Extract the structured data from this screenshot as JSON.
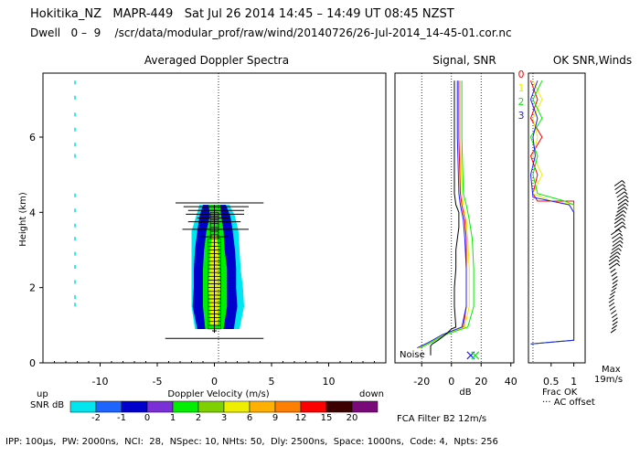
{
  "header": {
    "line1": "Hokitika_NZ   MAPR-449   Sat Jul 26 2014 14:45 – 14:49 UT 08:45 NZST",
    "line2": "Dwell   0 –  9    /scr/data/modular_prof/raw/wind/20140726/26-Jul-2014_14-45-01.cor.nc"
  },
  "footer": {
    "params": "IPP: 100μs,  PW: 2000ns,  NCI:  28,  NSpec: 10, NHts: 50,  Dly: 2500ns,  Space: 1000ns,  Code: 4,  Npts: 256"
  },
  "colors": {
    "snr_scale": [
      "#00e5ee",
      "#1e64ff",
      "#0000cd",
      "#7b2fd6",
      "#00ee00",
      "#7fd000",
      "#eeee00",
      "#ffb000",
      "#ff7f00",
      "#ff0000",
      "#3c0000",
      "#7a0a7a"
    ],
    "series": [
      "#ff0000",
      "#eeee00",
      "#00ee00",
      "#2020ff"
    ],
    "doppler_bg": "#00e5ee"
  },
  "chart_data": [
    {
      "panel": "doppler",
      "type": "heatmap",
      "title": "Averaged Doppler Spectra",
      "xlabel": "Doppler Velocity (m/s)",
      "ylabel": "Height (km)",
      "x_ticks": [
        -10,
        -5,
        0,
        5,
        10
      ],
      "y_ticks": [
        0,
        2,
        4,
        6
      ],
      "xlim": [
        -15,
        15
      ],
      "ylim": [
        0,
        7.7
      ],
      "label_up": "up",
      "label_down": "down",
      "snr_label": "SNR dB",
      "snr_levels": [
        "-2",
        "-1",
        "0",
        "1",
        "2",
        "3",
        "6",
        "9",
        "12",
        "15",
        "20"
      ],
      "envelope": [
        [
          0.9,
          -0.8,
          0.8,
          -1.5,
          1.7,
          -1.7,
          2.2
        ],
        [
          1.5,
          -1.0,
          1.1,
          -1.9,
          2.0,
          -2.0,
          2.6
        ],
        [
          2.0,
          -1.0,
          1.1,
          -1.8,
          1.9,
          -2.0,
          2.5
        ],
        [
          2.5,
          -1.0,
          1.1,
          -1.8,
          1.9,
          -2.0,
          2.3
        ],
        [
          3.0,
          -0.9,
          0.9,
          -1.7,
          1.8,
          -2.0,
          2.2
        ],
        [
          3.5,
          -0.7,
          0.8,
          -1.5,
          1.6,
          -2.0,
          2.1
        ],
        [
          3.9,
          -0.4,
          0.6,
          -1.3,
          1.4,
          -1.6,
          1.8
        ],
        [
          4.2,
          -0.5,
          0.5,
          -1.0,
          1.0,
          -1.3,
          1.3
        ]
      ],
      "error_bars": [
        [
          0.65,
          -4.3,
          4.3
        ],
        [
          0.85,
          -0.2,
          0.2
        ],
        [
          3.85,
          -1.5,
          1.3
        ],
        [
          3.75,
          -2.3,
          2.3
        ],
        [
          3.95,
          -2.5,
          2.6
        ],
        [
          4.05,
          -2.3,
          2.6
        ],
        [
          4.15,
          -2.7,
          3.0
        ],
        [
          4.25,
          -3.4,
          4.3
        ],
        [
          3.55,
          -2.8,
          3.0
        ],
        [
          3.35,
          -1.2,
          1.2
        ]
      ],
      "dashed_marks": [
        [
          -12.2,
          7.45
        ],
        [
          -12.2,
          7.05
        ],
        [
          -12.2,
          6.6
        ],
        [
          -12.2,
          6.2
        ],
        [
          -12.2,
          5.8
        ],
        [
          -12.2,
          5.5
        ],
        [
          -12.2,
          4.45
        ],
        [
          -12.2,
          4.05
        ],
        [
          -12.2,
          3.65
        ],
        [
          -12.2,
          3.3
        ],
        [
          -12.2,
          2.9
        ],
        [
          -12.2,
          2.55
        ],
        [
          -12.2,
          2.15
        ],
        [
          -12.2,
          1.75
        ],
        [
          -12.2,
          1.55
        ]
      ]
    },
    {
      "panel": "signal",
      "type": "line",
      "title": "Signal, SNR",
      "xlabel": "dB",
      "x_ticks": [
        -20,
        0,
        20,
        40
      ],
      "xlim": [
        -38,
        42
      ],
      "ylim": [
        0,
        7.7
      ],
      "noise_label": "Noise",
      "signal": [
        [
          -13,
          0.5
        ],
        [
          -9,
          0.6
        ],
        [
          -4,
          0.75
        ],
        [
          0,
          0.9
        ],
        [
          3,
          0.95
        ],
        [
          2,
          1.5
        ],
        [
          2,
          2.0
        ],
        [
          3,
          2.5
        ],
        [
          3,
          3.0
        ],
        [
          5,
          3.6
        ],
        [
          5,
          4.0
        ],
        [
          3,
          4.2
        ],
        [
          2,
          4.5
        ],
        [
          2,
          6.0
        ],
        [
          2,
          7.5
        ]
      ],
      "noise_floor": [
        [
          -14,
          0.2
        ],
        [
          -14,
          0.45
        ],
        [
          -13,
          0.5
        ]
      ],
      "series": [
        {
          "points": [
            [
              -22,
              0.4
            ],
            [
              -14,
              0.55
            ],
            [
              -5,
              0.75
            ],
            [
              8,
              0.95
            ],
            [
              10,
              1.5
            ],
            [
              10,
              2.5
            ],
            [
              10,
              3.3
            ],
            [
              9,
              3.8
            ],
            [
              7,
              4.2
            ],
            [
              6,
              4.5
            ],
            [
              5,
              6.0
            ],
            [
              5,
              7.5
            ]
          ]
        },
        {
          "points": [
            [
              -22,
              0.4
            ],
            [
              -14,
              0.55
            ],
            [
              -5,
              0.75
            ],
            [
              9,
              0.95
            ],
            [
              12,
              1.5
            ],
            [
              12,
              2.5
            ],
            [
              11,
              3.3
            ],
            [
              10,
              3.8
            ],
            [
              8,
              4.2
            ],
            [
              7,
              4.5
            ],
            [
              6,
              6.0
            ],
            [
              6,
              7.5
            ]
          ]
        },
        {
          "points": [
            [
              -21,
              0.4
            ],
            [
              -13,
              0.55
            ],
            [
              -4,
              0.75
            ],
            [
              11,
              0.95
            ],
            [
              15,
              1.5
            ],
            [
              15,
              2.5
            ],
            [
              14,
              3.3
            ],
            [
              12,
              3.8
            ],
            [
              10,
              4.2
            ],
            [
              8,
              4.5
            ],
            [
              7,
              6.0
            ],
            [
              7,
              7.5
            ]
          ]
        },
        {
          "points": [
            [
              -23,
              0.4
            ],
            [
              -15,
              0.55
            ],
            [
              -6,
              0.75
            ],
            [
              7,
              0.95
            ],
            [
              10,
              1.5
            ],
            [
              10,
              2.5
            ],
            [
              9,
              3.3
            ],
            [
              8,
              3.8
            ],
            [
              6,
              4.2
            ],
            [
              5,
              4.5
            ],
            [
              4,
              6.0
            ],
            [
              4,
              7.5
            ]
          ]
        }
      ],
      "markers": [
        [
          13,
          0.2
        ],
        [
          16,
          0.2
        ]
      ]
    },
    {
      "panel": "ok_snr",
      "type": "line",
      "title": "OK SNR,Winds",
      "xlabel": "Frac OK",
      "x_ticks": [
        "0.5",
        "1"
      ],
      "xlim": [
        0,
        1.25
      ],
      "ylim": [
        0,
        7.7
      ],
      "legend": [
        "0",
        "1",
        "2",
        "3"
      ],
      "offset_label": "··· AC offset",
      "series": [
        {
          "points": [
            [
              0.05,
              0.5
            ],
            [
              0.5,
              0.55
            ],
            [
              1.0,
              0.6
            ],
            [
              1.0,
              4.3
            ],
            [
              0.2,
              4.3
            ],
            [
              0.1,
              4.5
            ],
            [
              0.2,
              5.0
            ],
            [
              0.05,
              5.5
            ],
            [
              0.3,
              6.0
            ],
            [
              0.05,
              6.5
            ],
            [
              0.2,
              7.0
            ],
            [
              0.05,
              7.5
            ]
          ]
        },
        {
          "points": [
            [
              0.05,
              0.5
            ],
            [
              0.5,
              0.55
            ],
            [
              1.0,
              0.6
            ],
            [
              1.0,
              4.2
            ],
            [
              0.5,
              4.3
            ],
            [
              0.1,
              4.5
            ],
            [
              0.3,
              5.0
            ],
            [
              0.1,
              5.5
            ],
            [
              0.2,
              6.0
            ],
            [
              0.1,
              6.5
            ],
            [
              0.3,
              7.0
            ],
            [
              0.1,
              7.5
            ]
          ]
        },
        {
          "points": [
            [
              0.05,
              0.5
            ],
            [
              0.5,
              0.55
            ],
            [
              1.0,
              0.6
            ],
            [
              1.0,
              4.2
            ],
            [
              0.8,
              4.3
            ],
            [
              0.2,
              4.5
            ],
            [
              0.1,
              5.0
            ],
            [
              0.2,
              5.5
            ],
            [
              0.05,
              6.0
            ],
            [
              0.3,
              6.5
            ],
            [
              0.1,
              7.0
            ],
            [
              0.3,
              7.5
            ]
          ]
        },
        {
          "points": [
            [
              0.05,
              0.5
            ],
            [
              0.5,
              0.55
            ],
            [
              1.0,
              0.6
            ],
            [
              1.0,
              4.0
            ],
            [
              0.9,
              4.2
            ],
            [
              0.1,
              4.4
            ],
            [
              0.05,
              5.0
            ],
            [
              0.15,
              5.5
            ],
            [
              0.1,
              6.0
            ],
            [
              0.2,
              6.5
            ],
            [
              0.05,
              7.0
            ],
            [
              0.2,
              7.5
            ]
          ]
        }
      ]
    },
    {
      "panel": "winds",
      "type": "scatter",
      "max_label": "Max",
      "max_value": "19m/s",
      "filter_label": "FCA Filter B2 12m/s",
      "height_range": [
        0.8,
        4.7
      ]
    }
  ]
}
